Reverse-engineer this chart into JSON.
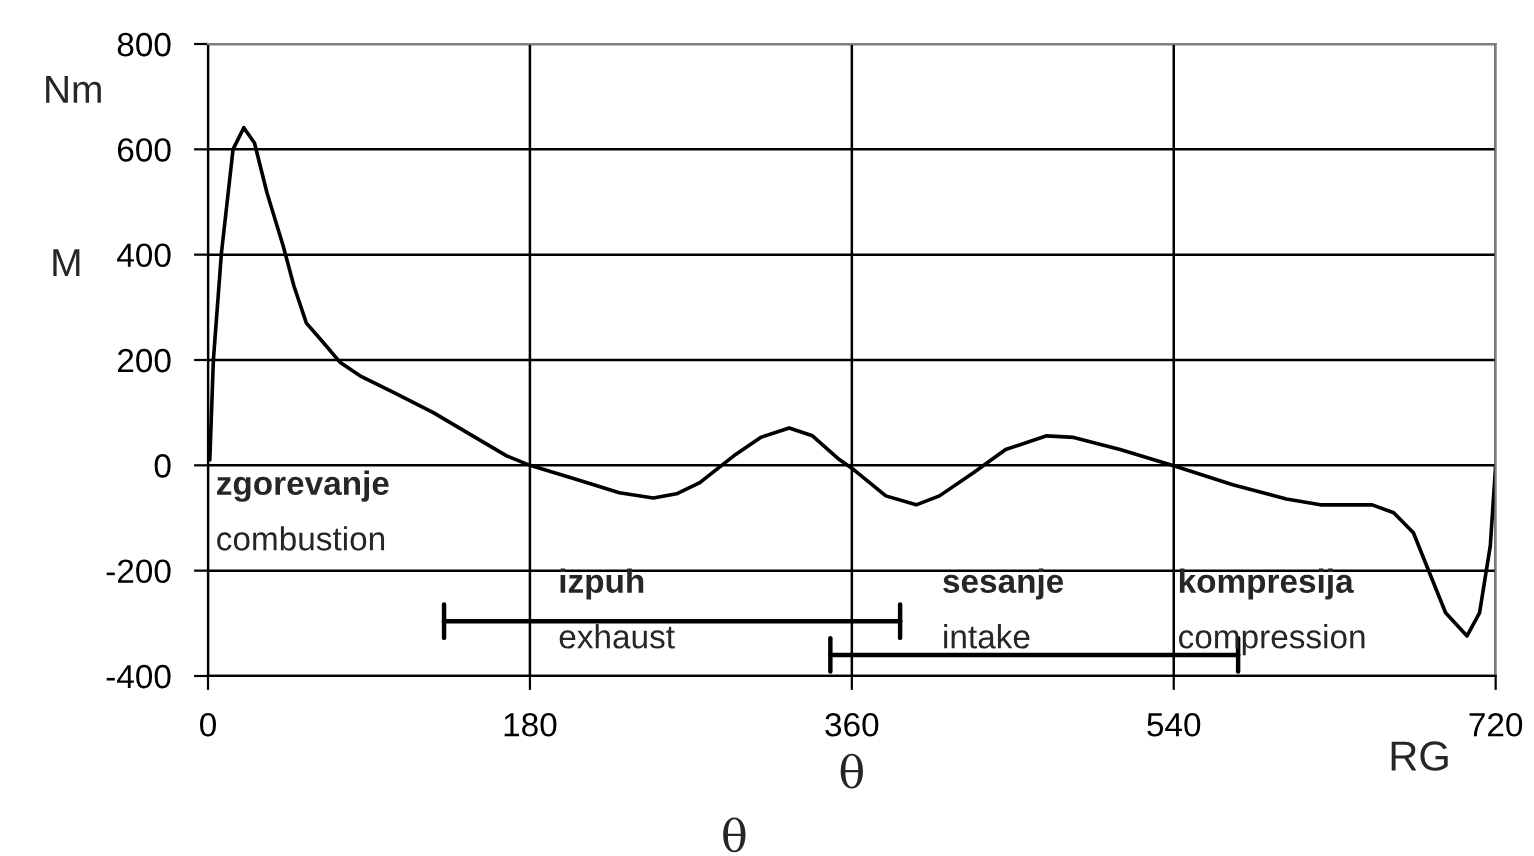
{
  "chart_data": {
    "type": "line",
    "xlabel": "θ",
    "ylabel": "M",
    "x": [
      1,
      3,
      7.5,
      14,
      20,
      26,
      33,
      42,
      48,
      55,
      63,
      74,
      85,
      104,
      126,
      148,
      167,
      180,
      208,
      230,
      249,
      262,
      275,
      294,
      309,
      325,
      338,
      353,
      361,
      379,
      396,
      409,
      428,
      446,
      469,
      484,
      510,
      540,
      573,
      603,
      622,
      651,
      663,
      674,
      683,
      692,
      704,
      711,
      717,
      720
    ],
    "series": [
      {
        "color": "#000000",
        "values": [
          10,
          200,
          403,
          600,
          641,
          612,
          517,
          417,
          341,
          270,
          239,
          195,
          170,
          138,
          100,
          56,
          18,
          0,
          -29,
          -52,
          -62,
          -54,
          -33,
          18,
          53,
          71,
          56,
          11,
          -8,
          -58,
          -75,
          -58,
          -14,
          30,
          56,
          53,
          30,
          -1,
          -37,
          -64,
          -75,
          -75,
          -90,
          -128,
          -204,
          -280,
          -324,
          -280,
          -153,
          0
        ]
      },
      {
        "type": "line",
        "color": "#000000",
        "x": [
          132,
          387
        ],
        "values": [
          -296,
          -296
        ]
      },
      {
        "type": "line",
        "color": "#000000",
        "x": [
          348,
          576
        ],
        "values": [
          -360,
          -360
        ]
      }
    ],
    "xlim": [
      0,
      720
    ],
    "xticks": [
      0,
      180,
      360,
      540,
      720
    ],
    "ylim": [
      -400,
      800
    ],
    "yticks": [
      -400,
      -200,
      0,
      200,
      400,
      600,
      800
    ],
    "grid": true,
    "marker": "none",
    "legend": false,
    "annotations": [
      "zgorevanje\ncombustion",
      "izpuh\nexhaust",
      "sesanje\nintake",
      "kompresija\ncompression",
      "Nm",
      "RG",
      "θ"
    ]
  }
}
